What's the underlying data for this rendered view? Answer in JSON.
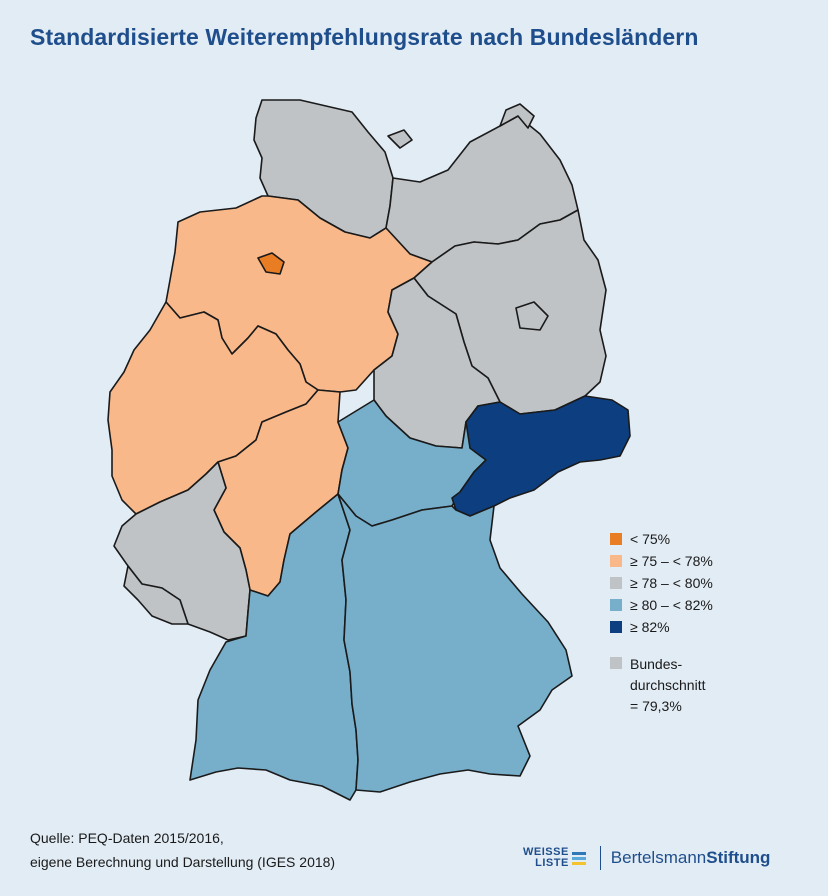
{
  "title": "Standardisierte Weiterempfehlungsrate nach Bundesländern",
  "colors": {
    "lt75": "#e87d23",
    "75to78": "#f8b88a",
    "78to80": "#bfc3c6",
    "80to82": "#77aeca",
    "ge82": "#0d3f80",
    "background": "#e2ecf5",
    "title": "#1f4e8c"
  },
  "legend": {
    "items": [
      {
        "label": "< 75%",
        "color": "#e87d23"
      },
      {
        "label": "≥ 75 – < 78%",
        "color": "#f8b88a"
      },
      {
        "label": "≥ 78 – < 80%",
        "color": "#bfc3c6"
      },
      {
        "label": "≥ 80 – < 82%",
        "color": "#77aeca"
      },
      {
        "label": "≥ 82%",
        "color": "#0d3f80"
      }
    ],
    "average": {
      "line1": "Bundes-",
      "line2": "durchschnitt",
      "line3": "= 79,3%",
      "color": "#bfc3c6"
    }
  },
  "states": [
    {
      "state": "Schleswig-Holstein",
      "category": "≥ 78 – < 80%"
    },
    {
      "state": "Hamburg",
      "category": "≥ 78 – < 80%"
    },
    {
      "state": "Mecklenburg-Vorpommern",
      "category": "≥ 78 – < 80%"
    },
    {
      "state": "Bremen",
      "category": "< 75%"
    },
    {
      "state": "Niedersachsen",
      "category": "≥ 75 – < 78%"
    },
    {
      "state": "Brandenburg",
      "category": "≥ 78 – < 80%"
    },
    {
      "state": "Berlin",
      "category": "≥ 78 – < 80%"
    },
    {
      "state": "Sachsen-Anhalt",
      "category": "≥ 78 – < 80%"
    },
    {
      "state": "Nordrhein-Westfalen",
      "category": "≥ 75 – < 78%"
    },
    {
      "state": "Hessen",
      "category": "≥ 75 – < 78%"
    },
    {
      "state": "Thüringen",
      "category": "≥ 80 – < 82%"
    },
    {
      "state": "Sachsen",
      "category": "≥ 82%"
    },
    {
      "state": "Rheinland-Pfalz",
      "category": "≥ 78 – < 80%"
    },
    {
      "state": "Saarland",
      "category": "≥ 78 – < 80%"
    },
    {
      "state": "Baden-Württemberg",
      "category": "≥ 80 – < 82%"
    },
    {
      "state": "Bayern",
      "category": "≥ 80 – < 82%"
    }
  ],
  "source": {
    "line1": "Quelle: PEQ-Daten 2015/2016,",
    "line2": "eigene Berechnung und Darstellung (IGES 2018)"
  },
  "logos": {
    "weisse": "WEISSE",
    "liste": "LISTE",
    "bertelsmann": "Bertelsmann",
    "stiftung": "Stiftung",
    "bar_colors": [
      "#2f78b7",
      "#5aa8d8",
      "#f2c230"
    ]
  }
}
